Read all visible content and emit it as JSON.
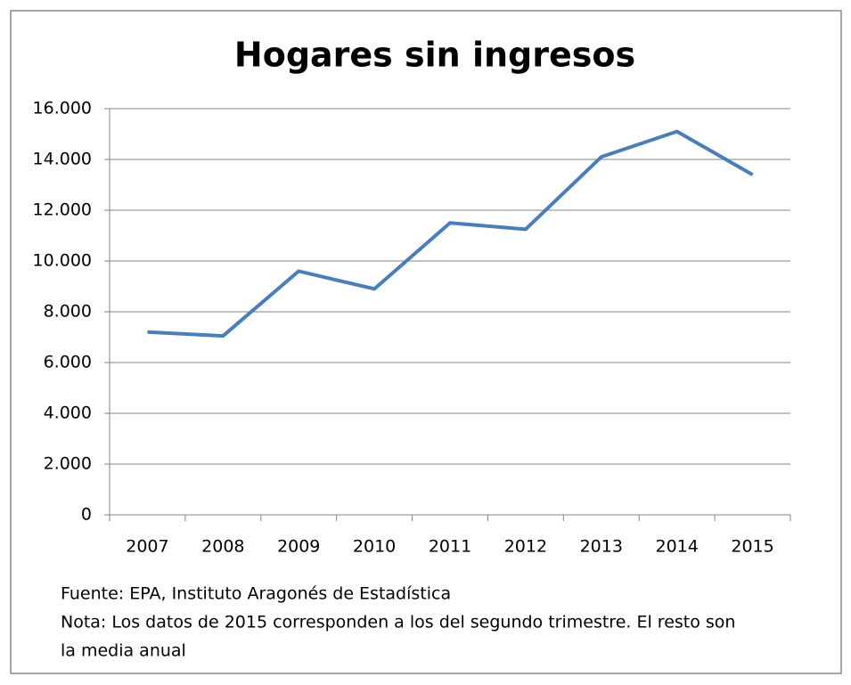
{
  "chart_data": {
    "type": "line",
    "title": "Hogares sin ingresos",
    "categories": [
      "2007",
      "2008",
      "2009",
      "2010",
      "2011",
      "2012",
      "2013",
      "2014",
      "2015"
    ],
    "series": [
      {
        "name": "Hogares sin ingresos",
        "color": "#4a7ebb",
        "values": [
          7200,
          7050,
          9600,
          8900,
          11500,
          11250,
          14100,
          15100,
          13400
        ]
      }
    ],
    "ylim": [
      0,
      16000
    ],
    "yticks": [
      0,
      {
        "value": 2000,
        "label": "2.000"
      },
      {
        "value": 4000,
        "label": "4.000"
      },
      {
        "value": 6000,
        "label": "6.000"
      },
      {
        "value": 8000,
        "label": "8.000"
      },
      {
        "value": 10000,
        "label": "10.000"
      },
      {
        "value": 12000,
        "label": "12.000"
      },
      {
        "value": 14000,
        "label": "14.000"
      },
      {
        "value": 16000,
        "label": "16.000"
      }
    ],
    "grid": true,
    "notes": [
      "Fuente: EPA, Instituto Aragonés de Estadística",
      "Nota: Los datos de 2015 corresponden a los del segundo trimestre. El resto son",
      "la media anual"
    ]
  }
}
